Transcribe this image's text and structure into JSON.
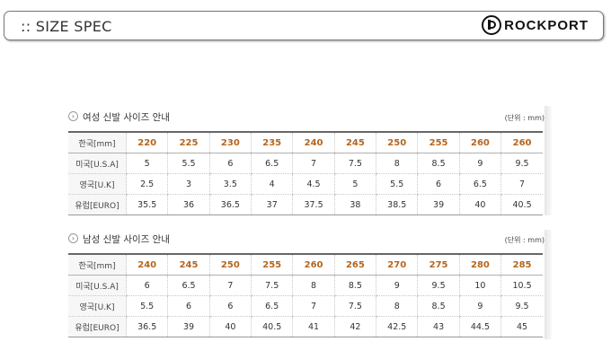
{
  "header": {
    "title": ":: SIZE SPEC",
    "brand": "ROCKPORT"
  },
  "women": {
    "title": "여성 신발 사이즈 안내",
    "unit": "(단위 : mm)",
    "rows": [
      {
        "label": "한국[mm]",
        "values": [
          "220",
          "225",
          "230",
          "235",
          "240",
          "245",
          "250",
          "255",
          "260",
          "260"
        ]
      },
      {
        "label": "미국[U.S.A]",
        "values": [
          "5",
          "5.5",
          "6",
          "6.5",
          "7",
          "7.5",
          "8",
          "8.5",
          "9",
          "9.5"
        ]
      },
      {
        "label": "영국[U.K]",
        "values": [
          "2.5",
          "3",
          "3.5",
          "4",
          "4.5",
          "5",
          "5.5",
          "6",
          "6.5",
          "7"
        ]
      },
      {
        "label": "유럽[EURO]",
        "values": [
          "35.5",
          "36",
          "36.5",
          "37",
          "37.5",
          "38",
          "38.5",
          "39",
          "40",
          "40.5"
        ]
      }
    ]
  },
  "men": {
    "title": "남성 신발 사이즈 안내",
    "unit": "(단위 : mm)",
    "rows": [
      {
        "label": "한국[mm]",
        "values": [
          "240",
          "245",
          "250",
          "255",
          "260",
          "265",
          "270",
          "275",
          "280",
          "285"
        ]
      },
      {
        "label": "미국[U.S.A]",
        "values": [
          "6",
          "6.5",
          "7",
          "7.5",
          "8",
          "8.5",
          "9",
          "9.5",
          "10",
          "10.5"
        ]
      },
      {
        "label": "영국[U.K]",
        "values": [
          "5.5",
          "6",
          "6",
          "6.5",
          "7",
          "7.5",
          "8",
          "8.5",
          "9",
          "9.5"
        ]
      },
      {
        "label": "유럽[EURO]",
        "values": [
          "36.5",
          "39",
          "40",
          "40.5",
          "41",
          "42",
          "42.5",
          "43",
          "44.5",
          "45"
        ]
      }
    ]
  }
}
